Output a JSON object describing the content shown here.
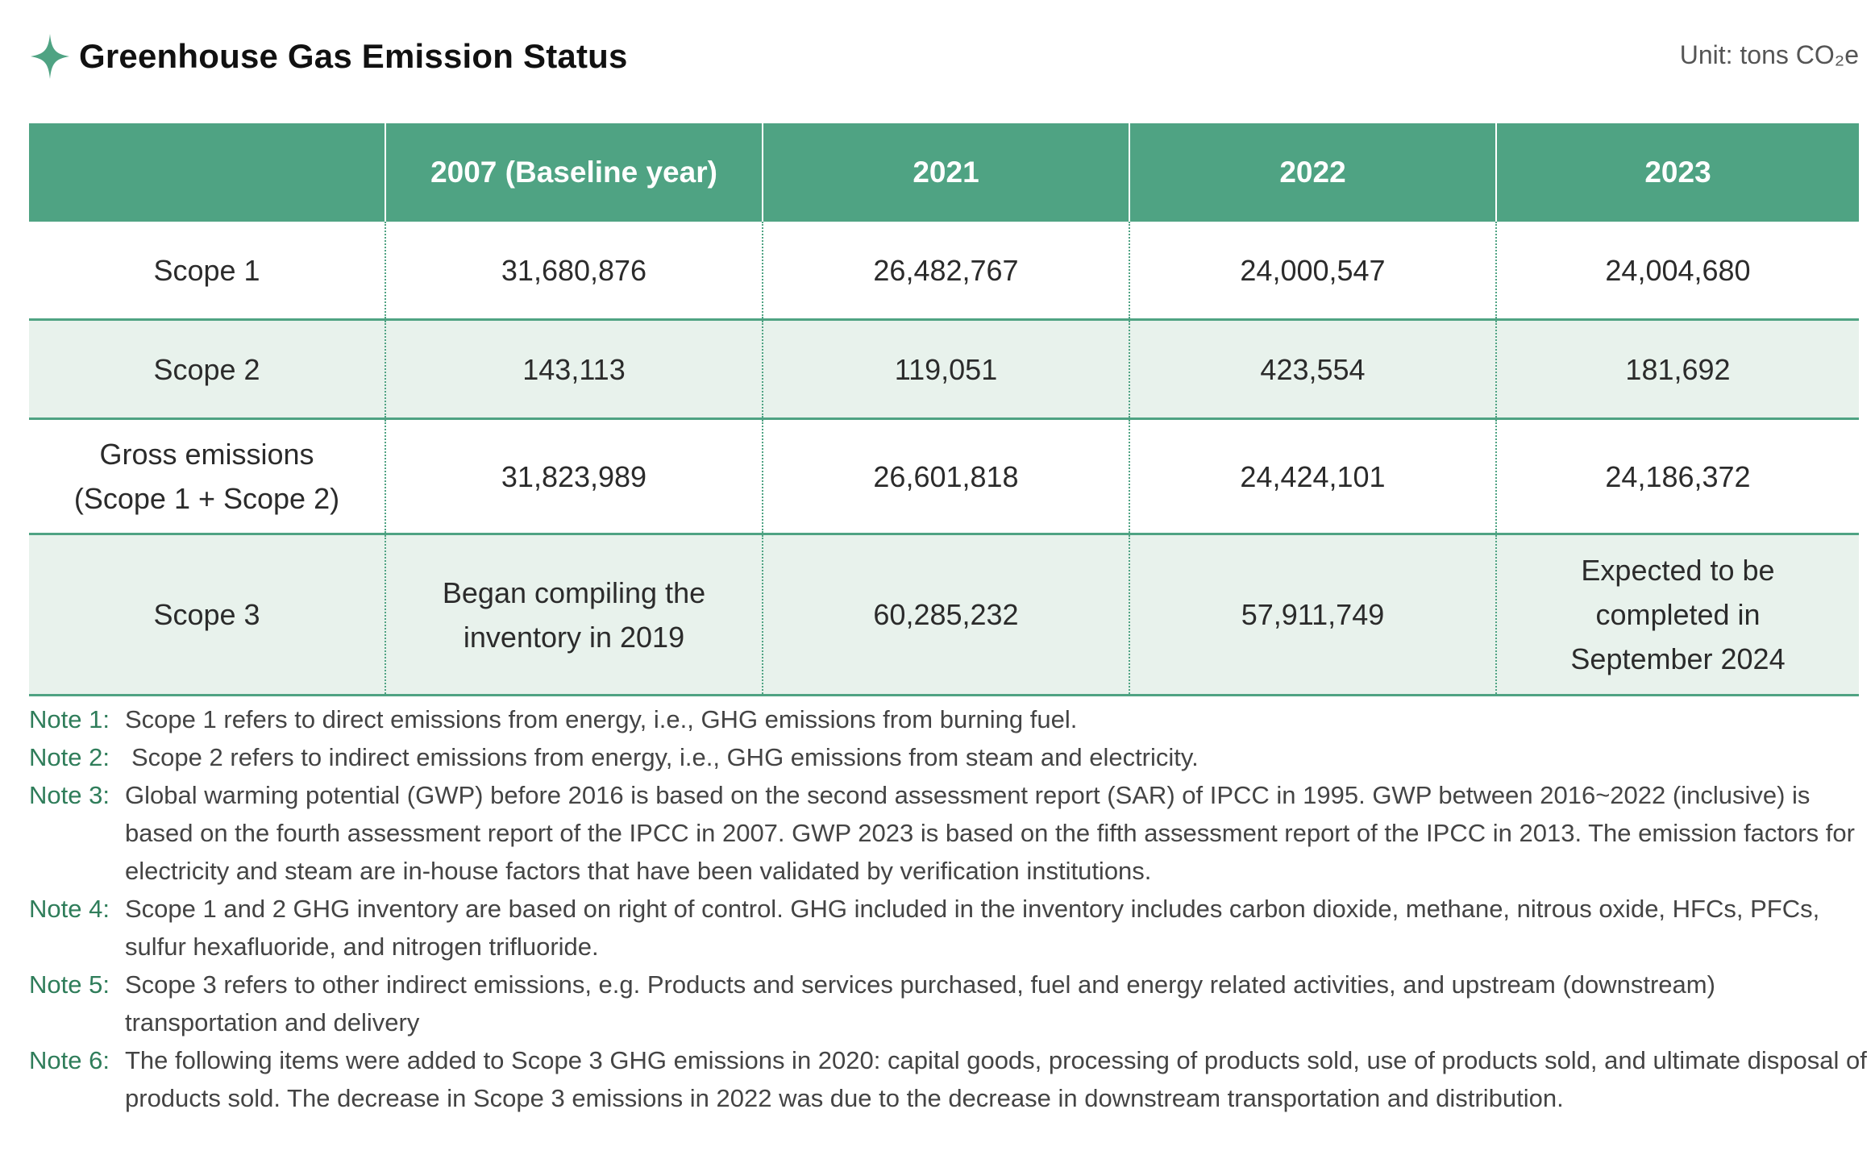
{
  "header": {
    "title": "Greenhouse Gas Emission Status",
    "unit": "Unit: tons CO₂e",
    "accent_color": "#4fa383",
    "icon": "sparkle-icon"
  },
  "table": {
    "columns": [
      "",
      "2007 (Baseline year)",
      "2021",
      "2022",
      "2023"
    ],
    "rows": [
      {
        "label": "Scope 1",
        "values": [
          "31,680,876",
          "26,482,767",
          "24,000,547",
          "24,004,680"
        ]
      },
      {
        "label": "Scope 2",
        "values": [
          "143,113",
          "119,051",
          "423,554",
          "181,692"
        ]
      },
      {
        "label": "Gross emissions\n(Scope 1 + Scope 2)",
        "values": [
          "31,823,989",
          "26,601,818",
          "24,424,101",
          "24,186,372"
        ]
      },
      {
        "label": "Scope 3",
        "values": [
          "Began compiling the\ninventory in 2019",
          "60,285,232",
          "57,911,749",
          "Expected to be\ncompleted in\nSeptember 2024"
        ]
      }
    ]
  },
  "notes": [
    {
      "label": "Note 1:",
      "text": "Scope 1 refers to direct emissions from energy, i.e., GHG emissions from burning fuel."
    },
    {
      "label": "Note 2:",
      "text": "Scope 2 refers to indirect emissions from energy, i.e., GHG emissions from steam and electricity."
    },
    {
      "label": "Note 3:",
      "text": "Global warming potential (GWP) before 2016 is based on the second assessment report (SAR) of IPCC in 1995. GWP between 2016~2022 (inclusive) is based on the fourth assessment report of the IPCC in 2007. GWP 2023 is based on the fifth assessment report of the IPCC in 2013. The emission factors for electricity and steam are in-house factors that have been validated by verification institutions."
    },
    {
      "label": "Note 4:",
      "text": "Scope 1 and 2 GHG inventory are based on right of control. GHG included in the inventory includes carbon dioxide, methane, nitrous oxide, HFCs, PFCs, sulfur hexafluoride, and nitrogen trifluoride."
    },
    {
      "label": "Note 5:",
      "text": "Scope 3 refers to other indirect emissions, e.g. Products and services purchased, fuel and energy related activities, and upstream (downstream) transportation and delivery"
    },
    {
      "label": "Note 6:",
      "text": "The following items were added to Scope 3 GHG emissions in 2020: capital goods, processing of products sold, use of products sold, and ultimate disposal of products sold. The decrease in Scope 3 emissions in 2022 was due to the decrease in downstream transportation and distribution."
    }
  ]
}
